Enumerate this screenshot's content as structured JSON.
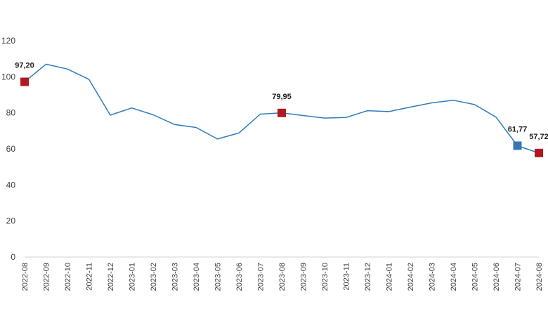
{
  "chart_data": {
    "type": "line",
    "title": "",
    "xlabel": "",
    "ylabel": "",
    "ylim": [
      0,
      120
    ],
    "y_ticks": [
      "0",
      "20",
      "40",
      "60",
      "80",
      "100",
      "120"
    ],
    "grid": false,
    "categories": [
      "2022-08",
      "2022-09",
      "2022-10",
      "2022-11",
      "2022-12",
      "2023-01",
      "2023-02",
      "2023-03",
      "2023-04",
      "2023-05",
      "2023-06",
      "2023-07",
      "2023-08",
      "2023-09",
      "2023-10",
      "2023-11",
      "2023-12",
      "2024-01",
      "2024-02",
      "2024-03",
      "2024-04",
      "2024-05",
      "2024-06",
      "2024-07",
      "2024-08"
    ],
    "series": [
      {
        "values": [
          97.2,
          107.0,
          104.3,
          98.6,
          78.7,
          82.7,
          78.9,
          73.5,
          71.9,
          65.5,
          68.8,
          79.3,
          79.95,
          78.5,
          77.1,
          77.4,
          81.2,
          80.7,
          83.2,
          85.5,
          87.0,
          84.6,
          77.6,
          61.77,
          57.72
        ],
        "color": "#2e7bbf"
      }
    ],
    "highlights": [
      {
        "index": 0,
        "label": "97,20",
        "color": "#b0191e"
      },
      {
        "index": 12,
        "label": "79,95",
        "color": "#b0191e"
      },
      {
        "index": 23,
        "label": "61,77",
        "color": "#3575b5"
      },
      {
        "index": 24,
        "label": "57,72",
        "color": "#b0191e"
      }
    ]
  }
}
